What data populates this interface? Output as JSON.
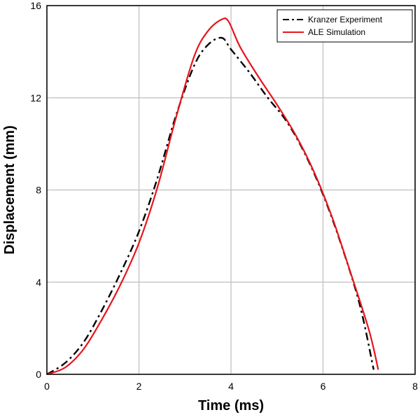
{
  "chart_data": {
    "type": "line",
    "title": "",
    "xlabel": "Time (ms)",
    "ylabel": "Displacement (mm)",
    "xlim": [
      0,
      8
    ],
    "ylim": [
      0,
      16
    ],
    "xticks": [
      0,
      2,
      4,
      6,
      8
    ],
    "yticks": [
      0,
      4,
      8,
      12,
      16
    ],
    "grid": true,
    "legend": "top-right",
    "series": [
      {
        "name": "Kranzer Experiment",
        "color": "#000000",
        "style": "dashdot",
        "x": [
          0.0,
          0.4,
          0.8,
          1.2,
          1.6,
          2.0,
          2.4,
          2.8,
          3.2,
          3.5,
          3.8,
          4.0,
          4.4,
          4.8,
          5.2,
          5.6,
          6.0,
          6.4,
          6.8,
          7.1
        ],
        "y": [
          0.0,
          0.5,
          1.4,
          2.8,
          4.4,
          6.2,
          8.5,
          11.2,
          13.4,
          14.3,
          14.6,
          14.1,
          13.1,
          12.0,
          11.0,
          9.6,
          7.8,
          5.6,
          3.0,
          0.2
        ]
      },
      {
        "name": "ALE Simulation",
        "color": "#e8141c",
        "style": "solid",
        "x": [
          0.0,
          0.4,
          0.8,
          1.2,
          1.6,
          2.0,
          2.4,
          2.8,
          3.2,
          3.5,
          3.8,
          3.95,
          4.2,
          4.6,
          5.0,
          5.4,
          5.8,
          6.2,
          6.6,
          7.0,
          7.2
        ],
        "y": [
          0.0,
          0.3,
          1.1,
          2.4,
          3.9,
          5.7,
          8.1,
          11.1,
          13.8,
          14.9,
          15.4,
          15.3,
          14.2,
          12.9,
          11.7,
          10.4,
          8.8,
          6.8,
          4.4,
          1.9,
          0.2
        ]
      }
    ]
  }
}
